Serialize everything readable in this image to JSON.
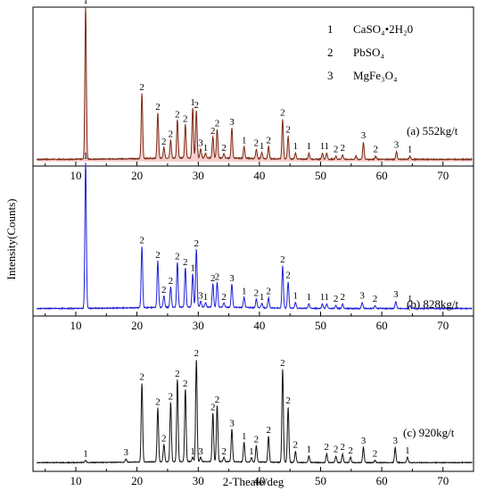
{
  "chart_data": {
    "type": "line",
    "xlabel": "2-Theate/deg",
    "ylabel": "Intensity(Counts)",
    "xlim": [
      3,
      75
    ],
    "xticks": [
      10,
      20,
      30,
      40,
      50,
      60,
      70
    ],
    "legend": {
      "placement": "top-right",
      "entries": [
        {
          "num": "1",
          "name": "CaSO₄•2H₂0"
        },
        {
          "num": "2",
          "name": "PbSO₄"
        },
        {
          "num": "3",
          "name": "MgFe₃O₄"
        }
      ]
    },
    "panels": [
      {
        "label": "(a)  552kg/t",
        "color": "#7a2a14",
        "fill": "#f5c6c6",
        "peaks": [
          {
            "x": 11.6,
            "h": 1.0,
            "lab": "1"
          },
          {
            "x": 20.8,
            "h": 0.43,
            "lab": "2"
          },
          {
            "x": 23.4,
            "h": 0.3,
            "lab": "2"
          },
          {
            "x": 24.4,
            "h": 0.07,
            "lab": "2"
          },
          {
            "x": 25.5,
            "h": 0.12,
            "lab": "2"
          },
          {
            "x": 26.6,
            "h": 0.25,
            "lab": "2"
          },
          {
            "x": 27.9,
            "h": 0.22,
            "lab": "2"
          },
          {
            "x": 29.1,
            "h": 0.33,
            "lab": "1"
          },
          {
            "x": 29.7,
            "h": 0.31,
            "lab": "2"
          },
          {
            "x": 30.4,
            "h": 0.06,
            "lab": "3"
          },
          {
            "x": 31.2,
            "h": 0.03,
            "lab": "1"
          },
          {
            "x": 32.4,
            "h": 0.14,
            "lab": "2"
          },
          {
            "x": 33.1,
            "h": 0.19,
            "lab": "2"
          },
          {
            "x": 34.2,
            "h": 0.03,
            "lab": "2"
          },
          {
            "x": 35.5,
            "h": 0.2,
            "lab": "3"
          },
          {
            "x": 37.5,
            "h": 0.08,
            "lab": "1"
          },
          {
            "x": 39.5,
            "h": 0.06,
            "lab": "2"
          },
          {
            "x": 40.4,
            "h": 0.04,
            "lab": "1"
          },
          {
            "x": 41.5,
            "h": 0.08,
            "lab": "2"
          },
          {
            "x": 43.8,
            "h": 0.26,
            "lab": "2"
          },
          {
            "x": 44.7,
            "h": 0.15,
            "lab": "2"
          },
          {
            "x": 45.9,
            "h": 0.04,
            "lab": "1"
          },
          {
            "x": 48.1,
            "h": 0.04,
            "lab": "1"
          },
          {
            "x": 50.3,
            "h": 0.04,
            "lab": "1"
          },
          {
            "x": 51.0,
            "h": 0.04,
            "lab": "1"
          },
          {
            "x": 52.5,
            "h": 0.02,
            "lab": "2"
          },
          {
            "x": 53.6,
            "h": 0.03,
            "lab": "2"
          },
          {
            "x": 55.8,
            "h": 0.02,
            "lab": ""
          },
          {
            "x": 57.0,
            "h": 0.11,
            "lab": "3"
          },
          {
            "x": 59.0,
            "h": 0.02,
            "lab": "2"
          },
          {
            "x": 62.4,
            "h": 0.05,
            "lab": "3"
          },
          {
            "x": 64.6,
            "h": 0.02,
            "lab": "1"
          }
        ]
      },
      {
        "label": "(b)  828kg/t",
        "color": "#1f1fd6",
        "fill": "",
        "peaks": [
          {
            "x": 11.6,
            "h": 1.0,
            "lab": "1"
          },
          {
            "x": 20.8,
            "h": 0.42,
            "lab": "2"
          },
          {
            "x": 23.4,
            "h": 0.32,
            "lab": "2"
          },
          {
            "x": 24.4,
            "h": 0.08,
            "lab": "2"
          },
          {
            "x": 25.5,
            "h": 0.14,
            "lab": "2"
          },
          {
            "x": 26.6,
            "h": 0.31,
            "lab": "2"
          },
          {
            "x": 27.9,
            "h": 0.27,
            "lab": "2"
          },
          {
            "x": 29.1,
            "h": 0.23,
            "lab": "1"
          },
          {
            "x": 29.7,
            "h": 0.4,
            "lab": "2"
          },
          {
            "x": 30.4,
            "h": 0.04,
            "lab": "3"
          },
          {
            "x": 31.2,
            "h": 0.03,
            "lab": "1"
          },
          {
            "x": 32.4,
            "h": 0.16,
            "lab": "2"
          },
          {
            "x": 33.1,
            "h": 0.17,
            "lab": "2"
          },
          {
            "x": 34.2,
            "h": 0.03,
            "lab": "2"
          },
          {
            "x": 35.5,
            "h": 0.16,
            "lab": "3"
          },
          {
            "x": 37.5,
            "h": 0.07,
            "lab": "1"
          },
          {
            "x": 39.5,
            "h": 0.06,
            "lab": "2"
          },
          {
            "x": 40.4,
            "h": 0.03,
            "lab": "1"
          },
          {
            "x": 41.5,
            "h": 0.07,
            "lab": "2"
          },
          {
            "x": 43.8,
            "h": 0.29,
            "lab": "2"
          },
          {
            "x": 44.7,
            "h": 0.18,
            "lab": "2"
          },
          {
            "x": 45.9,
            "h": 0.04,
            "lab": "1"
          },
          {
            "x": 48.1,
            "h": 0.03,
            "lab": "1"
          },
          {
            "x": 50.3,
            "h": 0.03,
            "lab": "1"
          },
          {
            "x": 51.0,
            "h": 0.03,
            "lab": "1"
          },
          {
            "x": 52.5,
            "h": 0.02,
            "lab": "2"
          },
          {
            "x": 53.6,
            "h": 0.03,
            "lab": "2"
          },
          {
            "x": 56.8,
            "h": 0.04,
            "lab": "3"
          },
          {
            "x": 58.9,
            "h": 0.02,
            "lab": "2"
          },
          {
            "x": 62.3,
            "h": 0.05,
            "lab": "3"
          },
          {
            "x": 64.6,
            "h": 0.02,
            "lab": "1"
          }
        ]
      },
      {
        "label": "(c)  920kg/t",
        "color": "#111111",
        "fill": "",
        "peaks": [
          {
            "x": 11.6,
            "h": 0.02,
            "lab": "1"
          },
          {
            "x": 18.2,
            "h": 0.03,
            "lab": "3"
          },
          {
            "x": 20.8,
            "h": 0.73,
            "lab": "2"
          },
          {
            "x": 23.4,
            "h": 0.5,
            "lab": "2"
          },
          {
            "x": 24.4,
            "h": 0.16,
            "lab": "2"
          },
          {
            "x": 25.5,
            "h": 0.55,
            "lab": "2"
          },
          {
            "x": 26.6,
            "h": 0.76,
            "lab": "2"
          },
          {
            "x": 27.9,
            "h": 0.67,
            "lab": "2"
          },
          {
            "x": 29.1,
            "h": 0.04,
            "lab": "1"
          },
          {
            "x": 29.7,
            "h": 0.95,
            "lab": "2"
          },
          {
            "x": 30.4,
            "h": 0.04,
            "lab": "3"
          },
          {
            "x": 32.4,
            "h": 0.45,
            "lab": "2"
          },
          {
            "x": 33.1,
            "h": 0.52,
            "lab": "2"
          },
          {
            "x": 34.2,
            "h": 0.04,
            "lab": "2"
          },
          {
            "x": 35.5,
            "h": 0.3,
            "lab": "3"
          },
          {
            "x": 37.5,
            "h": 0.18,
            "lab": "1"
          },
          {
            "x": 38.7,
            "h": 0.04,
            "lab": "1"
          },
          {
            "x": 39.5,
            "h": 0.15,
            "lab": "2"
          },
          {
            "x": 41.5,
            "h": 0.24,
            "lab": "2"
          },
          {
            "x": 43.8,
            "h": 0.86,
            "lab": "2"
          },
          {
            "x": 44.7,
            "h": 0.51,
            "lab": "2"
          },
          {
            "x": 45.9,
            "h": 0.1,
            "lab": "2"
          },
          {
            "x": 48.1,
            "h": 0.06,
            "lab": "1"
          },
          {
            "x": 51.0,
            "h": 0.08,
            "lab": "2"
          },
          {
            "x": 52.5,
            "h": 0.06,
            "lab": "2"
          },
          {
            "x": 53.6,
            "h": 0.08,
            "lab": "2"
          },
          {
            "x": 54.9,
            "h": 0.05,
            "lab": "2"
          },
          {
            "x": 57.0,
            "h": 0.14,
            "lab": "3"
          },
          {
            "x": 58.9,
            "h": 0.02,
            "lab": "2"
          },
          {
            "x": 62.2,
            "h": 0.14,
            "lab": "3"
          },
          {
            "x": 64.2,
            "h": 0.05,
            "lab": "1"
          }
        ]
      }
    ]
  }
}
